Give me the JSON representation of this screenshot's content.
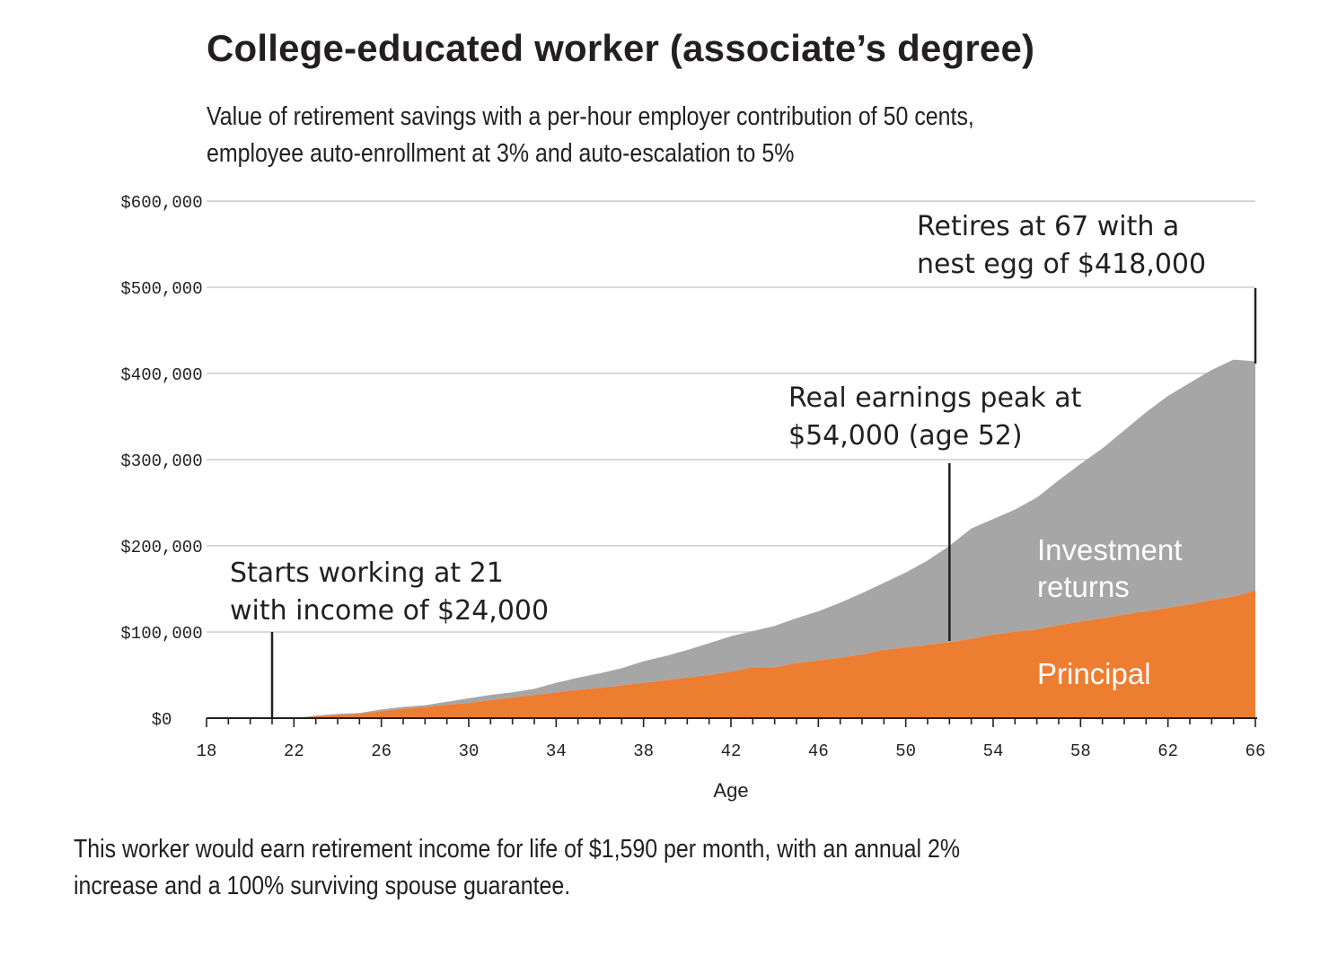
{
  "title": "College-educated worker (associate’s degree)",
  "subtitle_lines": [
    "Value of retirement savings with a per-hour employer contribution of 50 cents,",
    "employee auto-enrollment at 3% and auto-escalation to 5%"
  ],
  "footnote_lines": [
    "This worker would earn retirement income for life of $1,590 per month, with an annual 2%",
    "increase and a 100% surviving spouse guarantee."
  ],
  "colors": {
    "principal": "#ed7d31",
    "investment_returns": "#a6a6a6",
    "gridline": "#d9d9d9",
    "text": "#231f20"
  },
  "chart_data": {
    "type": "area",
    "stacked": true,
    "xlabel": "Age",
    "ylabel": "",
    "xlim": [
      18,
      66
    ],
    "ylim": [
      0,
      600000
    ],
    "x_ticks": [
      18,
      22,
      26,
      30,
      34,
      38,
      42,
      46,
      50,
      54,
      58,
      62,
      66
    ],
    "y_ticks": [
      0,
      100000,
      200000,
      300000,
      400000,
      500000,
      600000
    ],
    "y_tick_labels": [
      "$0",
      "$100,000",
      "$200,000",
      "$300,000",
      "$400,000",
      "$500,000",
      "$600,000"
    ],
    "grid": true,
    "x": [
      22,
      23,
      24,
      25,
      26,
      27,
      28,
      29,
      30,
      31,
      32,
      33,
      34,
      35,
      36,
      37,
      38,
      39,
      40,
      41,
      42,
      43,
      44,
      45,
      46,
      47,
      48,
      49,
      50,
      51,
      52,
      53,
      54,
      55,
      56,
      57,
      58,
      59,
      60,
      61,
      62,
      63,
      64,
      65,
      66
    ],
    "series": [
      {
        "name": "Principal",
        "values": [
          0,
          2000,
          3500,
          5000,
          8000,
          11000,
          13000,
          15500,
          17500,
          21000,
          24000,
          27000,
          30000,
          33000,
          35000,
          38000,
          41000,
          44000,
          47000,
          50000,
          54000,
          59000,
          59000,
          64000,
          67000,
          70000,
          74000,
          79000,
          82000,
          85000,
          88000,
          92000,
          97000,
          100000,
          103000,
          108000,
          112000,
          116000,
          120000,
          124000,
          128000,
          132000,
          137000,
          141000,
          148000
        ]
      },
      {
        "name": "Investment returns",
        "values": [
          0,
          1000,
          1500,
          1000,
          2000,
          2000,
          2000,
          3500,
          5500,
          6000,
          6000,
          7000,
          11000,
          14000,
          17000,
          20000,
          25000,
          28000,
          32000,
          37000,
          41000,
          42000,
          48000,
          52000,
          57000,
          64000,
          71000,
          78000,
          87000,
          98000,
          112000,
          128000,
          134000,
          142000,
          153000,
          168000,
          183000,
          197000,
          214000,
          231000,
          246000,
          257000,
          267000,
          275000,
          266000
        ]
      }
    ],
    "annotations": [
      {
        "x": 21,
        "lines": [
          "Starts working at 21",
          "with income of $24,000"
        ]
      },
      {
        "x": 52,
        "lines": [
          "Real earnings peak at",
          "$54,000 (age 52)"
        ]
      },
      {
        "x": 66,
        "lines": [
          "Retires at 67 with a",
          "nest egg of $418,000"
        ]
      }
    ],
    "area_labels": [
      {
        "series": "Investment returns",
        "lines": [
          "Investment",
          "returns"
        ]
      },
      {
        "series": "Principal",
        "lines": [
          "Principal"
        ]
      }
    ]
  }
}
